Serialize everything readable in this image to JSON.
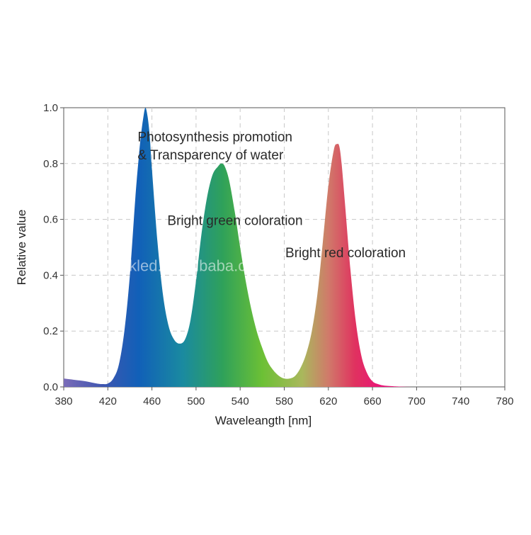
{
  "chart_data": {
    "type": "area",
    "xlabel": "Waveleangth [nm]",
    "ylabel": "Relative value",
    "xlim": [
      380,
      780
    ],
    "ylim": [
      0,
      1.0
    ],
    "x_ticks": [
      380,
      420,
      460,
      500,
      540,
      580,
      620,
      660,
      700,
      740,
      780
    ],
    "x_tick_labels": [
      "380",
      "420",
      "460",
      "500",
      "540",
      "580",
      "620",
      "660",
      "700",
      "740",
      "780"
    ],
    "y_ticks": [
      0,
      0.2,
      0.4,
      0.6,
      0.8,
      1.0
    ],
    "y_tick_labels": [
      "0.0",
      "0.2",
      "0.4",
      "0.6",
      "0.8",
      "1.0"
    ],
    "grid": true,
    "fill": "wavelength-spectrum gradient",
    "series": [
      {
        "x": [
          380,
          390,
          400,
          410,
          415,
          420,
          425,
          430,
          435,
          440,
          445,
          448,
          450,
          452,
          454,
          456,
          458,
          460,
          465,
          470,
          475,
          480,
          485,
          490,
          495,
          500,
          505,
          510,
          515,
          520,
          523,
          526,
          530,
          535,
          540,
          545,
          550,
          555,
          560,
          565,
          570,
          575,
          580,
          585,
          590,
          595,
          600,
          605,
          610,
          615,
          620,
          625,
          628,
          630,
          632,
          635,
          640,
          645,
          650,
          655,
          660,
          665,
          670,
          680,
          700,
          740,
          780
        ],
        "values": [
          0.03,
          0.025,
          0.02,
          0.012,
          0.01,
          0.012,
          0.03,
          0.08,
          0.2,
          0.4,
          0.68,
          0.82,
          0.9,
          0.96,
          1.0,
          0.97,
          0.9,
          0.78,
          0.52,
          0.33,
          0.22,
          0.17,
          0.155,
          0.17,
          0.24,
          0.38,
          0.55,
          0.68,
          0.76,
          0.79,
          0.8,
          0.79,
          0.74,
          0.63,
          0.5,
          0.38,
          0.28,
          0.2,
          0.14,
          0.09,
          0.06,
          0.04,
          0.03,
          0.03,
          0.04,
          0.07,
          0.12,
          0.2,
          0.33,
          0.52,
          0.72,
          0.85,
          0.87,
          0.86,
          0.8,
          0.66,
          0.42,
          0.23,
          0.11,
          0.05,
          0.02,
          0.01,
          0.005,
          0.002,
          0,
          0,
          0
        ]
      }
    ],
    "annotations": [
      {
        "text": "Photosynthesis promotion",
        "x": 447,
        "y": 0.88
      },
      {
        "text": "& Transparency of water",
        "x": 447,
        "y": 0.815
      },
      {
        "text": "Bright green coloration",
        "x": 474,
        "y": 0.58
      },
      {
        "text": "Bright red coloration",
        "x": 581,
        "y": 0.465
      }
    ],
    "watermark": {
      "text": "weekled.en.alibaba.com",
      "x": 489,
      "y": 0.415
    }
  }
}
